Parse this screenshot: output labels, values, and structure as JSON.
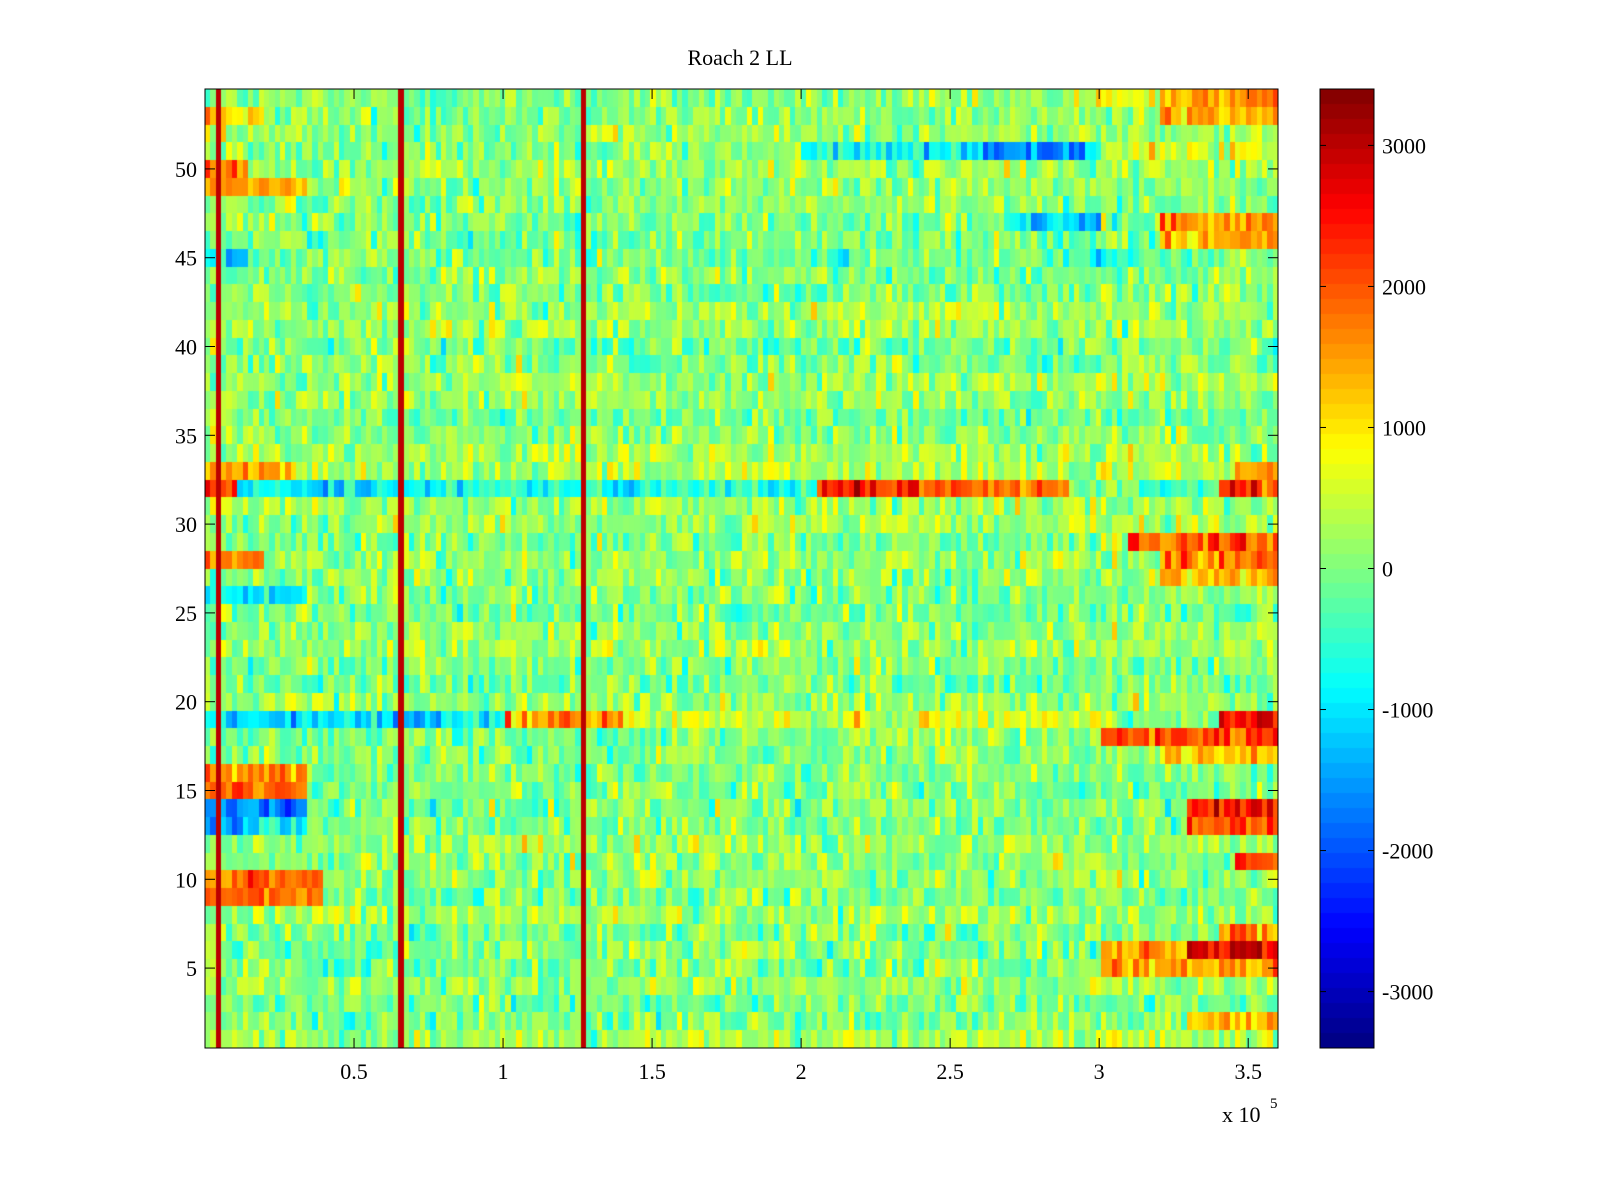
{
  "chart_data": {
    "type": "heatmap",
    "title": "Roach 2 LL",
    "xlabel": "",
    "ylabel": "",
    "x_multiplier_label": {
      "base": "x 10",
      "exponent": "5"
    },
    "xlim": [
      0,
      360000
    ],
    "ylim": [
      0.5,
      54.5
    ],
    "x_ticks": [
      {
        "value": 50000,
        "label": "0.5"
      },
      {
        "value": 100000,
        "label": "1"
      },
      {
        "value": 150000,
        "label": "1.5"
      },
      {
        "value": 200000,
        "label": "2"
      },
      {
        "value": 250000,
        "label": "2.5"
      },
      {
        "value": 300000,
        "label": "3"
      },
      {
        "value": 350000,
        "label": "3.5"
      }
    ],
    "y_ticks": [
      {
        "value": 5,
        "label": "5"
      },
      {
        "value": 10,
        "label": "10"
      },
      {
        "value": 15,
        "label": "15"
      },
      {
        "value": 20,
        "label": "20"
      },
      {
        "value": 25,
        "label": "25"
      },
      {
        "value": 30,
        "label": "30"
      },
      {
        "value": 35,
        "label": "35"
      },
      {
        "value": 40,
        "label": "40"
      },
      {
        "value": 45,
        "label": "45"
      },
      {
        "value": 50,
        "label": "50"
      }
    ],
    "colorbar": {
      "colormap": "jet",
      "clim": [
        -3400,
        3400
      ],
      "ticks": [
        {
          "value": 3000,
          "label": "3000"
        },
        {
          "value": 2000,
          "label": "2000"
        },
        {
          "value": 1000,
          "label": "1000"
        },
        {
          "value": 0,
          "label": "0"
        },
        {
          "value": -1000,
          "label": "-1000"
        },
        {
          "value": -2000,
          "label": "-2000"
        },
        {
          "value": -3000,
          "label": "-3000"
        }
      ]
    },
    "rows": 54,
    "column_bin_width": 1800,
    "baseline_value": 0,
    "vertical_spikes": [
      {
        "x": 5000,
        "value": 3000
      },
      {
        "x": 66000,
        "value": 3000
      },
      {
        "x": 127000,
        "value": 3000
      }
    ],
    "row_profiles": [
      {
        "row": 32,
        "segments": [
          [
            0,
            10000,
            2300
          ],
          [
            10000,
            65000,
            -800
          ],
          [
            65000,
            205000,
            -600
          ],
          [
            205000,
            240000,
            2300
          ],
          [
            240000,
            290000,
            1900
          ],
          [
            290000,
            340000,
            -300
          ],
          [
            340000,
            360000,
            2300
          ]
        ]
      },
      {
        "row": 33,
        "segments": [
          [
            0,
            30000,
            1500
          ],
          [
            30000,
            360000,
            300
          ],
          [
            345000,
            360000,
            1400
          ]
        ]
      },
      {
        "row": 50,
        "segments": [
          [
            0,
            15000,
            1800
          ],
          [
            15000,
            360000,
            200
          ]
        ]
      },
      {
        "row": 49,
        "segments": [
          [
            0,
            35000,
            1400
          ],
          [
            35000,
            360000,
            100
          ]
        ]
      },
      {
        "row": 45,
        "segments": [
          [
            0,
            15000,
            -1000
          ],
          [
            15000,
            360000,
            -100
          ],
          [
            295000,
            315000,
            -900
          ]
        ]
      },
      {
        "row": 53,
        "segments": [
          [
            0,
            20000,
            1300
          ],
          [
            20000,
            360000,
            100
          ],
          [
            320000,
            360000,
            1400
          ]
        ]
      },
      {
        "row": 54,
        "segments": [
          [
            0,
            290000,
            0
          ],
          [
            290000,
            320000,
            600
          ],
          [
            320000,
            360000,
            1500
          ]
        ]
      },
      {
        "row": 51,
        "segments": [
          [
            0,
            200000,
            100
          ],
          [
            200000,
            300000,
            -800
          ],
          [
            260000,
            295000,
            -1600
          ],
          [
            300000,
            360000,
            600
          ]
        ]
      },
      {
        "row": 47,
        "segments": [
          [
            0,
            300000,
            0
          ],
          [
            270000,
            300000,
            -1300
          ],
          [
            320000,
            360000,
            1600
          ]
        ]
      },
      {
        "row": 46,
        "segments": [
          [
            0,
            320000,
            0
          ],
          [
            320000,
            360000,
            1400
          ]
        ]
      },
      {
        "row": 28,
        "segments": [
          [
            0,
            20000,
            1800
          ],
          [
            20000,
            320000,
            200
          ],
          [
            320000,
            360000,
            1700
          ]
        ]
      },
      {
        "row": 29,
        "segments": [
          [
            0,
            300000,
            0
          ],
          [
            310000,
            360000,
            1900
          ]
        ]
      },
      {
        "row": 27,
        "segments": [
          [
            0,
            320000,
            100
          ],
          [
            320000,
            360000,
            1400
          ]
        ]
      },
      {
        "row": 26,
        "segments": [
          [
            0,
            35000,
            -1000
          ],
          [
            35000,
            360000,
            0
          ]
        ]
      },
      {
        "row": 19,
        "segments": [
          [
            0,
            100000,
            -1000
          ],
          [
            100000,
            140000,
            1600
          ],
          [
            140000,
            300000,
            500
          ],
          [
            300000,
            340000,
            0
          ],
          [
            340000,
            360000,
            2600
          ]
        ]
      },
      {
        "row": 18,
        "segments": [
          [
            0,
            300000,
            0
          ],
          [
            300000,
            360000,
            2100
          ]
        ]
      },
      {
        "row": 17,
        "segments": [
          [
            0,
            320000,
            0
          ],
          [
            320000,
            360000,
            1300
          ]
        ]
      },
      {
        "row": 16,
        "segments": [
          [
            0,
            35000,
            1500
          ],
          [
            35000,
            360000,
            0
          ]
        ]
      },
      {
        "row": 15,
        "segments": [
          [
            0,
            35000,
            1700
          ],
          [
            35000,
            360000,
            0
          ]
        ]
      },
      {
        "row": 14,
        "segments": [
          [
            0,
            35000,
            -1700
          ],
          [
            35000,
            330000,
            0
          ],
          [
            330000,
            360000,
            2300
          ]
        ]
      },
      {
        "row": 13,
        "segments": [
          [
            0,
            12000,
            -1800
          ],
          [
            12000,
            35000,
            -900
          ],
          [
            35000,
            330000,
            0
          ],
          [
            330000,
            360000,
            2000
          ]
        ]
      },
      {
        "row": 11,
        "segments": [
          [
            0,
            345000,
            100
          ],
          [
            345000,
            360000,
            2000
          ]
        ]
      },
      {
        "row": 10,
        "segments": [
          [
            0,
            40000,
            1900
          ],
          [
            40000,
            360000,
            100
          ]
        ]
      },
      {
        "row": 9,
        "segments": [
          [
            0,
            40000,
            1700
          ],
          [
            40000,
            360000,
            0
          ]
        ]
      },
      {
        "row": 7,
        "segments": [
          [
            0,
            340000,
            0
          ],
          [
            340000,
            360000,
            1700
          ]
        ]
      },
      {
        "row": 6,
        "segments": [
          [
            0,
            300000,
            0
          ],
          [
            300000,
            330000,
            1500
          ],
          [
            330000,
            360000,
            2800
          ]
        ]
      },
      {
        "row": 5,
        "segments": [
          [
            0,
            300000,
            0
          ],
          [
            300000,
            360000,
            1400
          ]
        ]
      },
      {
        "row": 2,
        "segments": [
          [
            0,
            330000,
            0
          ],
          [
            330000,
            360000,
            1300
          ]
        ]
      }
    ]
  }
}
